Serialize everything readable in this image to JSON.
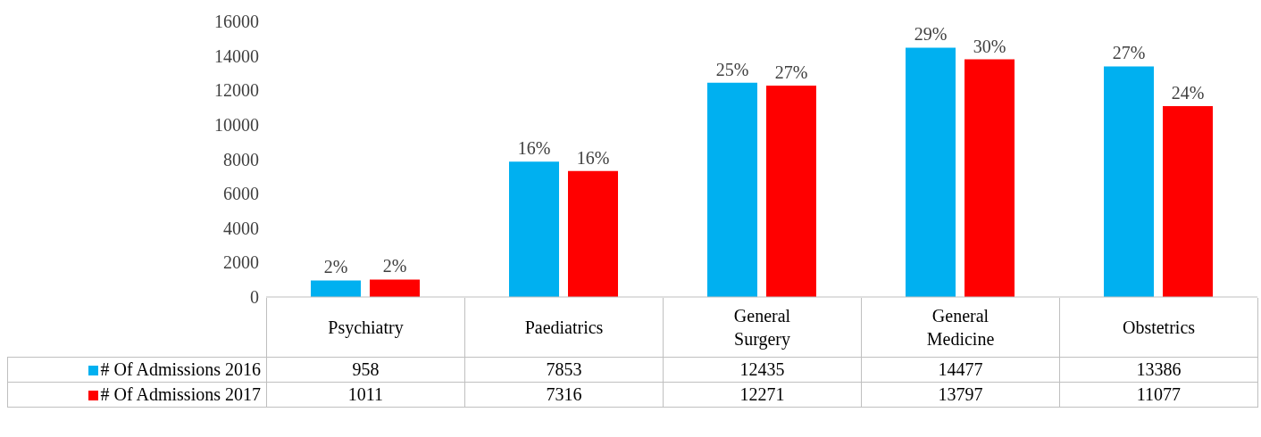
{
  "chart_data": {
    "type": "bar",
    "categories": [
      "Psychiatry",
      "Paediatrics",
      "General Surgery",
      "General Medicine",
      "Obstetrics"
    ],
    "series": [
      {
        "name": "# Of Admissions 2016",
        "color": "#00b0f0",
        "values": [
          958,
          7853,
          12435,
          14477,
          13386
        ]
      },
      {
        "name": "# Of Admissions 2017",
        "color": "#ff0000",
        "values": [
          1011,
          7316,
          12271,
          13797,
          11077
        ]
      }
    ],
    "annotations": [
      "2%",
      "2%",
      "16%",
      "16%",
      "25%",
      "27%",
      "29%",
      "30%",
      "27%",
      "24%"
    ],
    "ylim": [
      0,
      16000
    ],
    "yticks": [
      0,
      2000,
      4000,
      6000,
      8000,
      10000,
      12000,
      14000,
      16000
    ],
    "grid": false,
    "legend": "bottom",
    "data_labels": true
  }
}
